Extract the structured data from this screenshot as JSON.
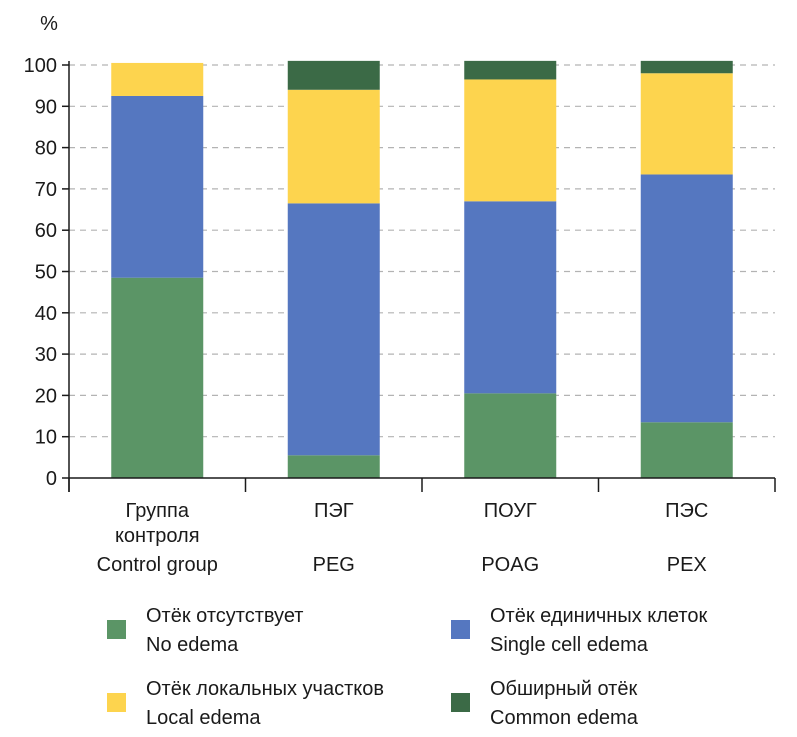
{
  "chart_data": {
    "type": "bar",
    "stacked": true,
    "ylabel": "%",
    "ylim": [
      0,
      100
    ],
    "yticks": [
      0,
      10,
      20,
      30,
      40,
      50,
      60,
      70,
      80,
      90,
      100
    ],
    "grid": "horizontal-dashed",
    "legend_position": "bottom",
    "categories": [
      [
        "Группа",
        "контроля",
        "Control group"
      ],
      [
        "ПЭГ",
        "",
        "PEG"
      ],
      [
        "ПОУГ",
        "",
        "POAG"
      ],
      [
        "ПЭС",
        "",
        "PEX"
      ]
    ],
    "series": [
      {
        "name": [
          "Отёк отсутствует",
          "No edema"
        ],
        "color": "#5b9566",
        "values": [
          48.5,
          5.5,
          20.5,
          13.5
        ]
      },
      {
        "name": [
          "Отёк единичных клеток",
          "Single cell edema"
        ],
        "color": "#5577c0",
        "values": [
          44,
          61,
          46.5,
          60
        ]
      },
      {
        "name": [
          "Отёк локальных участков",
          "Local edema"
        ],
        "color": "#fdd44e",
        "values": [
          8,
          27.5,
          29.5,
          24.5
        ]
      },
      {
        "name": [
          "Обширный отёк",
          "Common edema"
        ],
        "color": "#3b6a46",
        "values": [
          0,
          7,
          4.5,
          3
        ]
      }
    ]
  }
}
